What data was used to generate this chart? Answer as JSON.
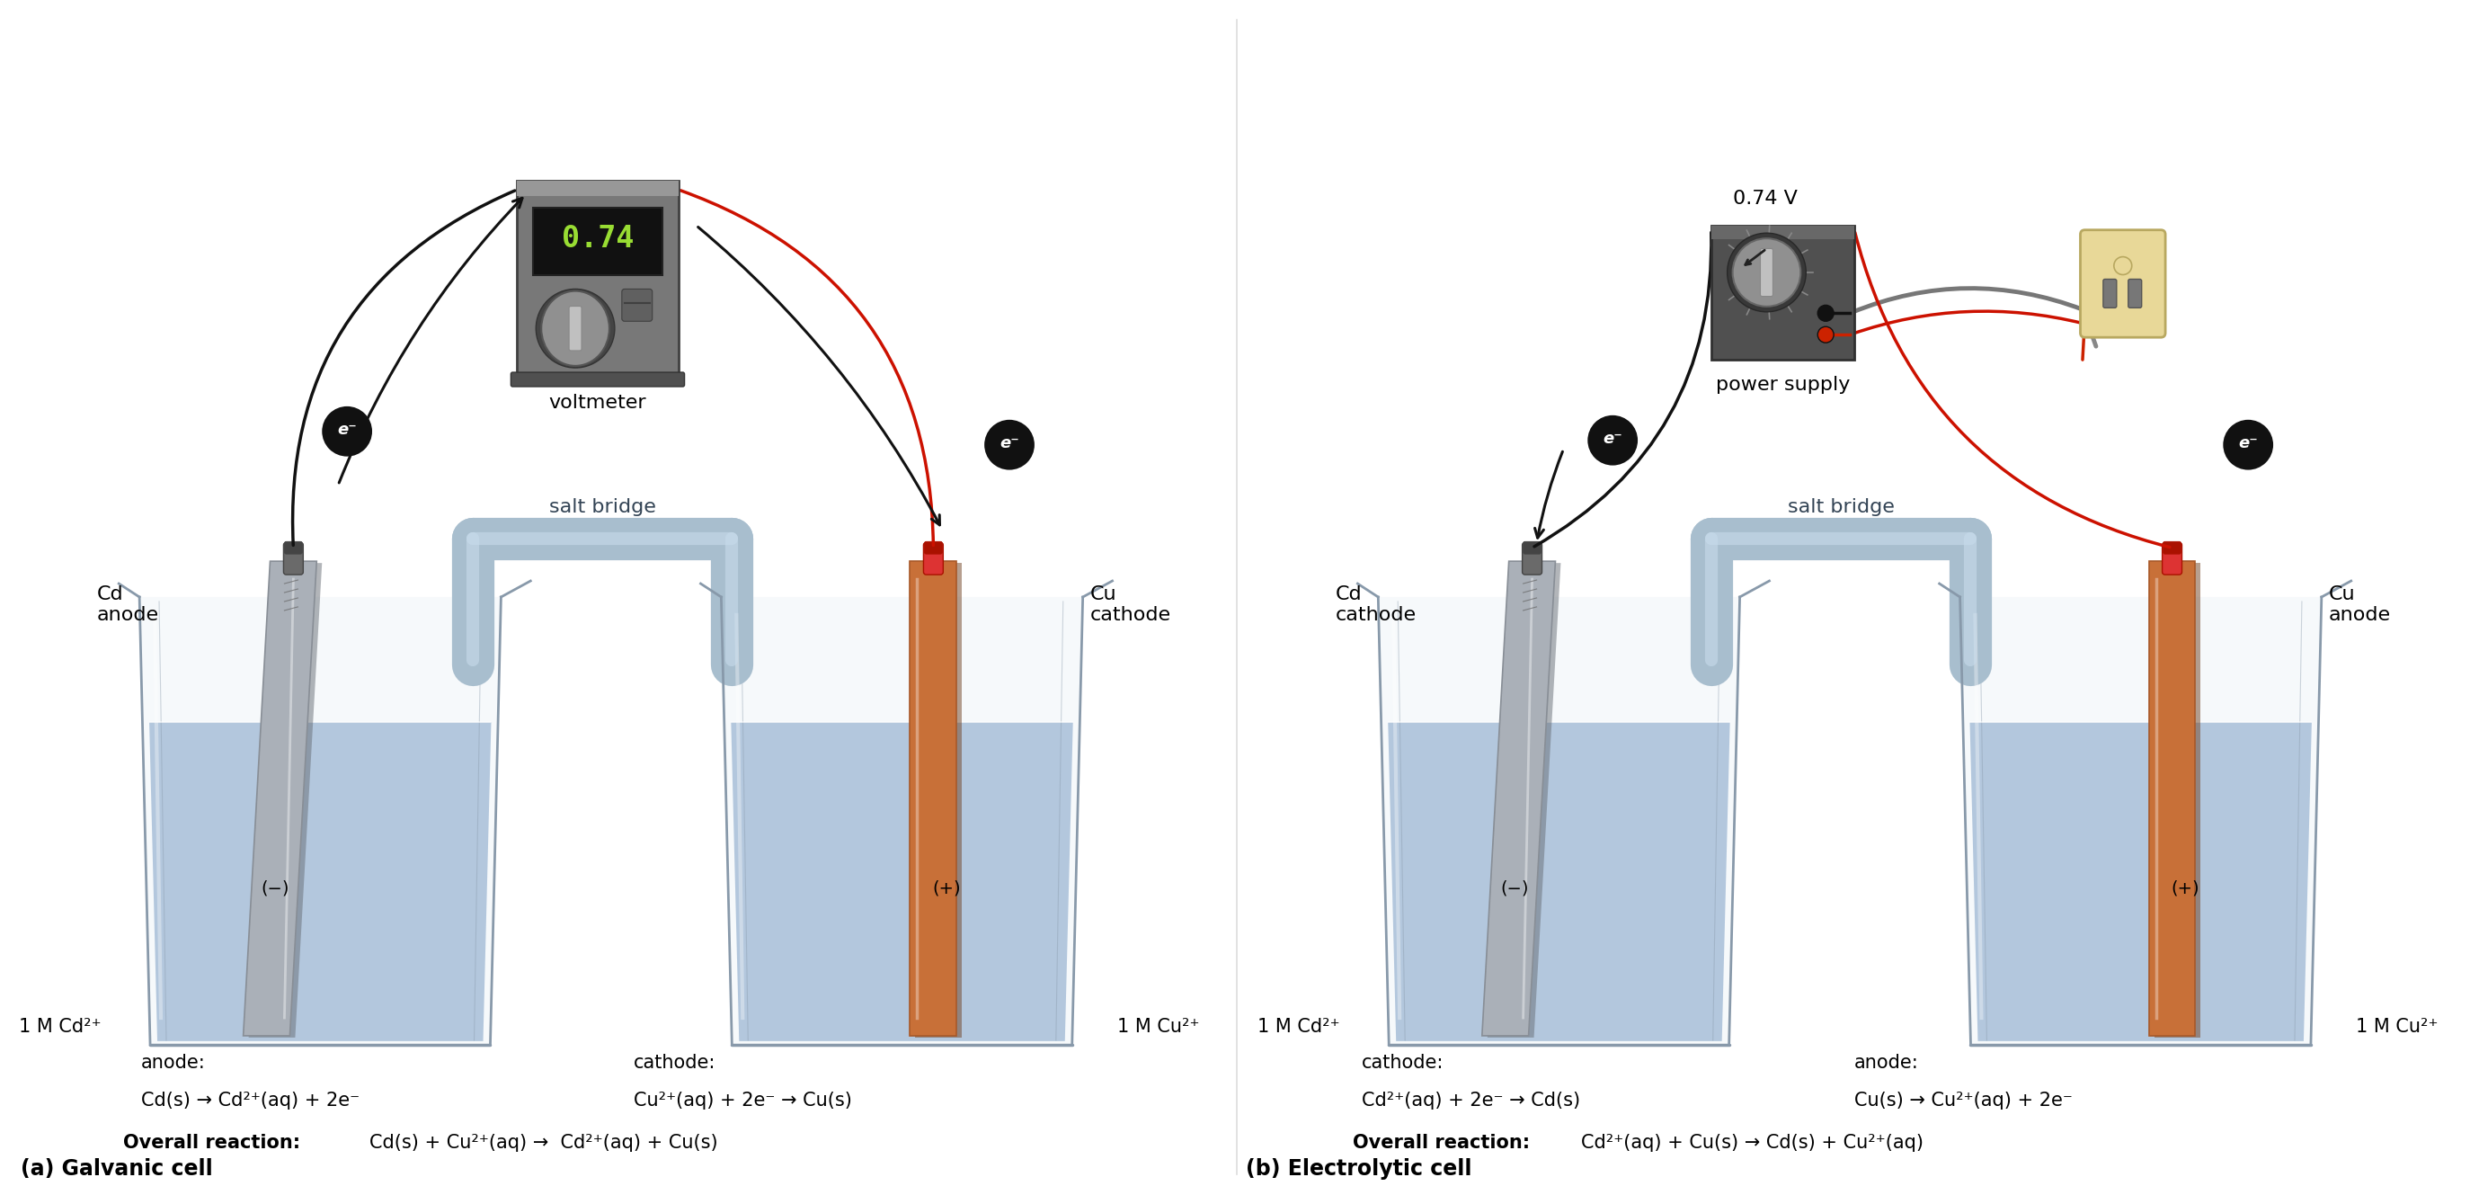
{
  "bg_color": "#ffffff",
  "title_a": "(a) Galvanic cell",
  "title_b": "(b) Electrolytic cell",
  "voltmeter_reading": "0.74",
  "voltage_label": "0.74 V",
  "salt_bridge_label": "salt bridge",
  "voltmeter_label": "voltmeter",
  "power_supply_label": "power supply",
  "cd_anode_label_a": "Cd\nanode",
  "cu_cathode_label_a": "Cu\ncathode",
  "cd_cathode_label_b": "Cd\ncathode",
  "cu_anode_label_b": "Cu\nanode",
  "cd_conc_label": "1 M Cd²⁺",
  "cu_conc_label": "1 M Cu²⁺",
  "minus_sign": "(−)",
  "plus_sign": "(+)",
  "anode_rxn_a_line1": "anode:",
  "anode_rxn_a_line2": "Cd(s) → Cd²⁺(aq) + 2e⁻",
  "cathode_rxn_a_line1": "cathode:",
  "cathode_rxn_a_line2": "Cu²⁺(aq) + 2e⁻ → Cu(s)",
  "overall_prefix": "Overall reaction: ",
  "overall_a_rest": "Cd(s) + Cu²⁺(aq) →  Cd²⁺(aq) + Cu(s)",
  "cathode_rxn_b_line1": "cathode:",
  "cathode_rxn_b_line2": "Cd²⁺(aq) + 2e⁻ → Cd(s)",
  "anode_rxn_b_line1": "anode:",
  "anode_rxn_b_line2": "Cu(s) → Cu²⁺(aq) + 2e⁻",
  "overall_b_rest": "Cd²⁺(aq) + Cu(s) → Cd(s) + Cu²⁺(aq)",
  "water_color": "#a8bfd8",
  "water_color2": "#bdd0e8",
  "beaker_edge": "#8899aa",
  "salt_bridge_color": "#a8bece",
  "salt_bridge_hl": "#c8dcec",
  "voltmeter_body": "#787878",
  "voltmeter_body2": "#606060",
  "display_bg": "#111111",
  "display_text": "#99dd33",
  "wire_black": "#111111",
  "wire_red": "#cc1100",
  "connector_gray": "#555555",
  "connector_red": "#dd3333",
  "electron_bg": "#111111",
  "electron_fg": "#ffffff",
  "cd_col1": "#aab0b8",
  "cd_col2": "#888e96",
  "cu_col1": "#c87038",
  "cu_col2": "#a85828",
  "outlet_bg": "#e8d898",
  "outlet_edge": "#b8a860",
  "ps_body": "#505050",
  "ps_knob": "#909090"
}
